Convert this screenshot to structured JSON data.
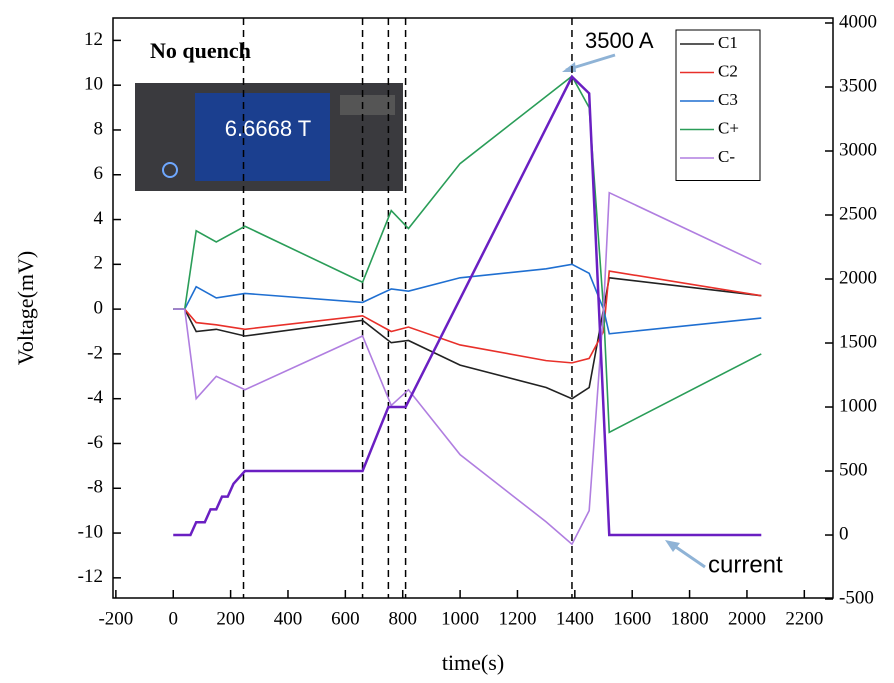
{
  "chart_data": {
    "type": "line",
    "x_label": "time(s)",
    "y_label": "Voltage(mV)",
    "x": [
      0,
      40,
      80,
      150,
      250,
      660,
      760,
      820,
      1000,
      1300,
      1390,
      1450,
      1500,
      1520,
      2050
    ],
    "series": [
      {
        "name": "C1",
        "color": "#222222",
        "values": [
          0,
          0,
          -1,
          -0.9,
          -1.2,
          -0.5,
          -1.5,
          -1.4,
          -2.5,
          -3.5,
          -4,
          -3.5,
          0,
          1.4,
          0.6
        ]
      },
      {
        "name": "C2",
        "color": "#e8302a",
        "values": [
          0,
          0,
          -0.6,
          -0.7,
          -0.9,
          -0.3,
          -1,
          -0.8,
          -1.6,
          -2.3,
          -2.4,
          -2.2,
          -1,
          1.7,
          0.6
        ]
      },
      {
        "name": "C3",
        "color": "#1f6fd1",
        "values": [
          0,
          0,
          1,
          0.5,
          0.7,
          0.3,
          0.9,
          0.8,
          1.4,
          1.8,
          2,
          1.6,
          0,
          -1.1,
          -0.4
        ]
      },
      {
        "name": "C+",
        "color": "#2a9d58",
        "values": [
          0,
          0,
          3.5,
          3,
          3.7,
          1.2,
          4.4,
          3.6,
          6.5,
          9.5,
          10.4,
          9,
          0,
          -5.5,
          -2
        ]
      },
      {
        "name": "C-",
        "color": "#b07ee0",
        "values": [
          0,
          0,
          -4,
          -3,
          -3.6,
          -1.2,
          -4.3,
          -3.6,
          -6.5,
          -9.5,
          -10.5,
          -9,
          0,
          5.2,
          2
        ]
      },
      {
        "name": "current",
        "color": "#6a1fc2",
        "axis": "y2",
        "legend": false,
        "x": [
          0,
          60,
          80,
          110,
          130,
          150,
          170,
          190,
          210,
          250,
          660,
          750,
          810,
          1390,
          1450,
          1520,
          2050
        ],
        "values": [
          0,
          0,
          100,
          100,
          200,
          200,
          300,
          300,
          400,
          500,
          500,
          1000,
          1000,
          3580,
          3450,
          0,
          0
        ]
      }
    ],
    "vlines": [
      245,
      660,
      750,
      810,
      1390
    ],
    "annotations": [
      "No quench",
      "3500 A"
    ],
    "inset_text": "6.6668 T",
    "xlim": [
      -210,
      2300
    ],
    "xticks": [
      -200,
      0,
      200,
      400,
      600,
      800,
      1000,
      1200,
      1400,
      1600,
      1800,
      2000,
      2200
    ],
    "ylim": [
      -12.9,
      13
    ],
    "yticks": [
      -12,
      -10,
      -8,
      -6,
      -4,
      -2,
      0,
      2,
      4,
      6,
      8,
      10,
      12
    ],
    "y2lim": [
      -492,
      4039
    ],
    "y2ticks": [
      -500,
      0,
      500,
      1000,
      1500,
      2000,
      2500,
      3000,
      3500,
      4000
    ],
    "legend": "upper right",
    "grid": false
  }
}
